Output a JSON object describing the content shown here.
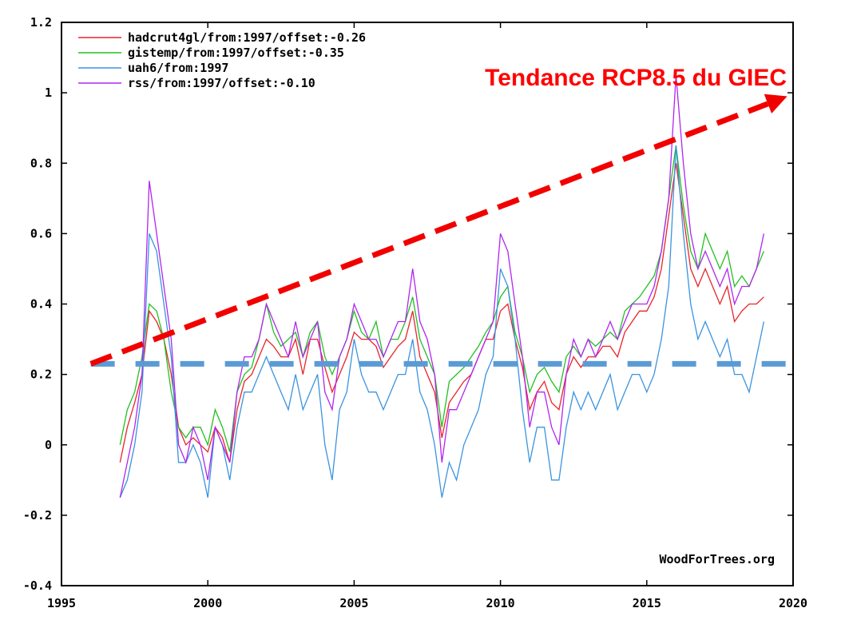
{
  "chart_data": {
    "type": "line",
    "title": "",
    "xlabel": "",
    "ylabel": "",
    "xlim": [
      1995,
      2020
    ],
    "ylim": [
      -0.4,
      1.2
    ],
    "x_ticks": [
      "1995",
      "2000",
      "2005",
      "2010",
      "2015",
      "2020"
    ],
    "y_ticks": [
      "-0.4",
      "-0.2",
      "0",
      "0.2",
      "0.4",
      "0.6",
      "0.8",
      "1",
      "1.2"
    ],
    "x_start": 1997,
    "x_step": 0.25,
    "series": [
      {
        "name": "hadcrut4gl/from:1997/offset:-0.26",
        "color": "#e8242b",
        "values": [
          -0.05,
          0.05,
          0.12,
          0.2,
          0.38,
          0.35,
          0.3,
          0.2,
          0.05,
          0.0,
          0.02,
          0.0,
          -0.02,
          0.05,
          0.02,
          -0.05,
          0.1,
          0.18,
          0.2,
          0.25,
          0.3,
          0.28,
          0.25,
          0.25,
          0.3,
          0.2,
          0.3,
          0.3,
          0.22,
          0.15,
          0.2,
          0.25,
          0.32,
          0.3,
          0.3,
          0.28,
          0.22,
          0.25,
          0.28,
          0.3,
          0.38,
          0.25,
          0.2,
          0.15,
          0.02,
          0.12,
          0.15,
          0.18,
          0.2,
          0.25,
          0.3,
          0.3,
          0.38,
          0.4,
          0.3,
          0.22,
          0.1,
          0.15,
          0.18,
          0.12,
          0.1,
          0.2,
          0.25,
          0.22,
          0.25,
          0.25,
          0.28,
          0.28,
          0.25,
          0.32,
          0.35,
          0.38,
          0.38,
          0.42,
          0.5,
          0.65,
          0.8,
          0.65,
          0.5,
          0.45,
          0.5,
          0.45,
          0.4,
          0.45,
          0.35,
          0.38,
          0.4,
          0.4,
          0.42
        ]
      },
      {
        "name": "gistemp/from:1997/offset:-0.35",
        "color": "#22c022",
        "values": [
          0.0,
          0.1,
          0.15,
          0.25,
          0.4,
          0.38,
          0.3,
          0.15,
          0.05,
          0.02,
          0.05,
          0.05,
          0.0,
          0.1,
          0.05,
          -0.02,
          0.15,
          0.2,
          0.22,
          0.3,
          0.4,
          0.32,
          0.28,
          0.3,
          0.32,
          0.25,
          0.32,
          0.35,
          0.25,
          0.2,
          0.25,
          0.3,
          0.38,
          0.32,
          0.3,
          0.35,
          0.25,
          0.3,
          0.3,
          0.35,
          0.42,
          0.3,
          0.25,
          0.2,
          0.05,
          0.18,
          0.2,
          0.22,
          0.25,
          0.28,
          0.32,
          0.35,
          0.42,
          0.45,
          0.32,
          0.25,
          0.15,
          0.2,
          0.22,
          0.18,
          0.15,
          0.25,
          0.28,
          0.25,
          0.3,
          0.28,
          0.3,
          0.32,
          0.3,
          0.38,
          0.4,
          0.42,
          0.45,
          0.48,
          0.55,
          0.7,
          0.85,
          0.68,
          0.55,
          0.5,
          0.6,
          0.55,
          0.5,
          0.55,
          0.45,
          0.48,
          0.45,
          0.5,
          0.55
        ]
      },
      {
        "name": "uah6/from:1997",
        "color": "#3a93e0",
        "values": [
          -0.15,
          -0.1,
          0.0,
          0.15,
          0.6,
          0.55,
          0.4,
          0.25,
          -0.05,
          -0.05,
          0.0,
          -0.05,
          -0.15,
          0.05,
          0.0,
          -0.1,
          0.05,
          0.15,
          0.15,
          0.2,
          0.25,
          0.2,
          0.15,
          0.1,
          0.2,
          0.1,
          0.15,
          0.2,
          0.0,
          -0.1,
          0.1,
          0.15,
          0.3,
          0.2,
          0.15,
          0.15,
          0.1,
          0.15,
          0.2,
          0.2,
          0.3,
          0.15,
          0.1,
          0.0,
          -0.15,
          -0.05,
          -0.1,
          0.0,
          0.05,
          0.1,
          0.2,
          0.25,
          0.5,
          0.45,
          0.3,
          0.1,
          -0.05,
          0.05,
          0.05,
          -0.1,
          -0.1,
          0.05,
          0.15,
          0.1,
          0.15,
          0.1,
          0.15,
          0.2,
          0.1,
          0.15,
          0.2,
          0.2,
          0.15,
          0.2,
          0.3,
          0.45,
          0.85,
          0.6,
          0.4,
          0.3,
          0.35,
          0.3,
          0.25,
          0.3,
          0.2,
          0.2,
          0.15,
          0.25,
          0.35
        ]
      },
      {
        "name": "rss/from:1997/offset:-0.10",
        "color": "#b026f0",
        "values": [
          -0.15,
          -0.05,
          0.05,
          0.2,
          0.75,
          0.6,
          0.45,
          0.3,
          0.0,
          -0.05,
          0.05,
          0.0,
          -0.1,
          0.05,
          0.0,
          -0.05,
          0.15,
          0.25,
          0.25,
          0.3,
          0.4,
          0.35,
          0.3,
          0.25,
          0.35,
          0.25,
          0.3,
          0.35,
          0.15,
          0.1,
          0.25,
          0.3,
          0.4,
          0.35,
          0.3,
          0.3,
          0.25,
          0.3,
          0.35,
          0.35,
          0.5,
          0.35,
          0.3,
          0.2,
          -0.05,
          0.1,
          0.1,
          0.15,
          0.2,
          0.25,
          0.3,
          0.35,
          0.6,
          0.55,
          0.4,
          0.25,
          0.05,
          0.15,
          0.15,
          0.05,
          0.0,
          0.2,
          0.3,
          0.25,
          0.3,
          0.25,
          0.3,
          0.35,
          0.3,
          0.35,
          0.4,
          0.4,
          0.4,
          0.45,
          0.55,
          0.7,
          1.05,
          0.8,
          0.6,
          0.5,
          0.55,
          0.5,
          0.45,
          0.5,
          0.4,
          0.45,
          0.45,
          0.5,
          0.6
        ]
      }
    ],
    "annotations": {
      "trend_label": "Tendance RCP8.5 du GIEC",
      "trend_line": {
        "from": [
          1996,
          0.23
        ],
        "to": [
          2019.8,
          0.99
        ],
        "color": "#f20000"
      },
      "flat_line": {
        "from": [
          1996,
          0.23
        ],
        "to": [
          2019.8,
          0.23
        ],
        "value": 0.23,
        "color": "#5b9bd5"
      },
      "watermark": "WoodForTrees.org"
    },
    "legend_position": "top-left",
    "grid": false
  }
}
